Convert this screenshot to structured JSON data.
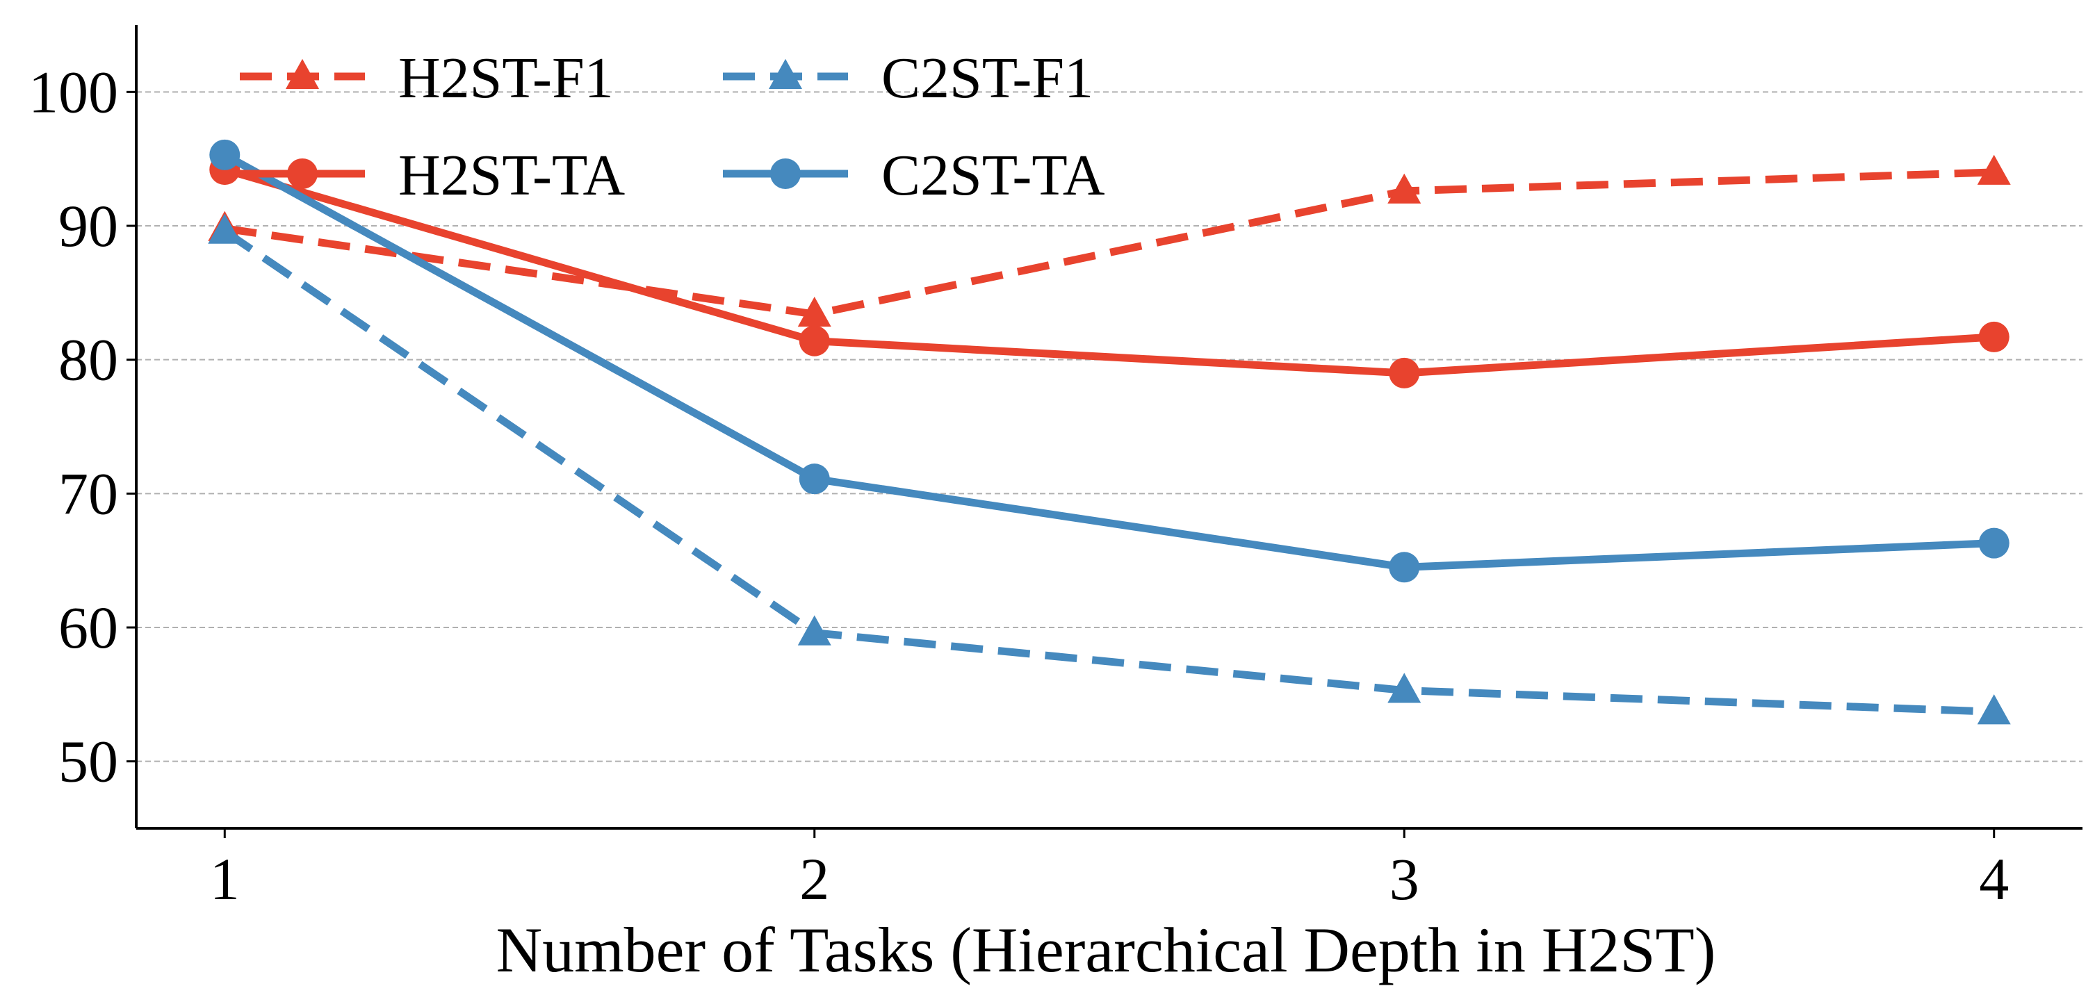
{
  "chart_data": {
    "type": "line",
    "title": "",
    "xlabel": "Number of Tasks (Hierarchical Depth in H2ST)",
    "ylabel": "",
    "x": [
      1,
      2,
      3,
      4
    ],
    "x_tick_labels": [
      "1",
      "2",
      "3",
      "4"
    ],
    "xlim": [
      0.85,
      4.15
    ],
    "ylim": [
      45,
      105
    ],
    "y_ticks": [
      50,
      60,
      70,
      80,
      90,
      100
    ],
    "y_tick_labels": [
      "50",
      "60",
      "70",
      "80",
      "90",
      "100"
    ],
    "grid": "horizontal dashed",
    "legend_position": "upper-left, 2 columns",
    "series": [
      {
        "name": "H2ST-F1",
        "values": [
          89.8,
          83.4,
          92.6,
          94.0
        ],
        "color": "#E8432E",
        "line_style": "dashed",
        "marker": "triangle"
      },
      {
        "name": "C2ST-F1",
        "values": [
          89.6,
          59.6,
          55.3,
          53.7
        ],
        "color": "#4589BE",
        "line_style": "dashed",
        "marker": "triangle"
      },
      {
        "name": "H2ST-TA",
        "values": [
          94.2,
          81.4,
          79.0,
          81.7
        ],
        "color": "#E8432E",
        "line_style": "solid",
        "marker": "circle"
      },
      {
        "name": "C2ST-TA",
        "values": [
          95.3,
          71.1,
          64.5,
          66.3
        ],
        "color": "#4589BE",
        "line_style": "solid",
        "marker": "circle"
      }
    ]
  }
}
